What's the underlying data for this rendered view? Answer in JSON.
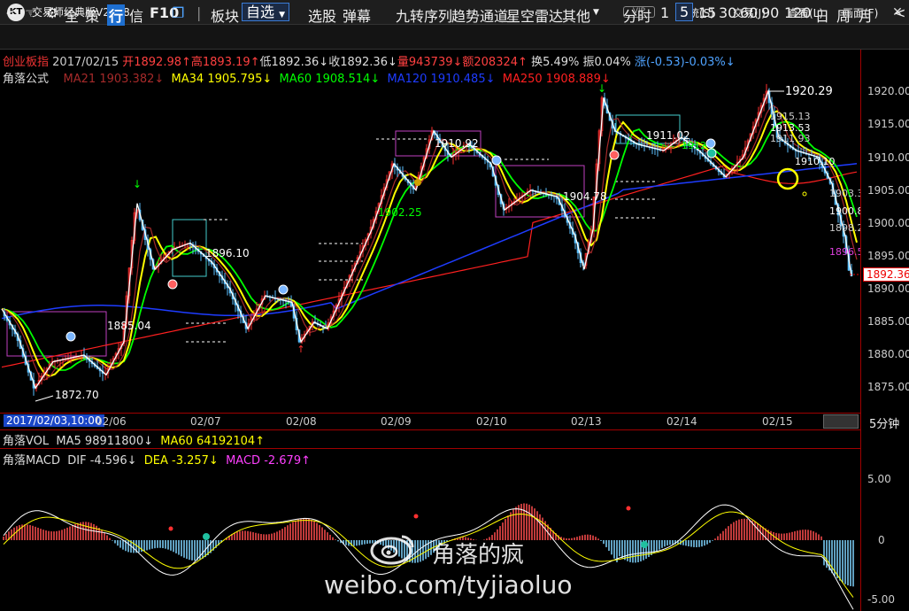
{
  "app": {
    "title": "交易师经典版V2.0.8",
    "logo": "KT",
    "vip": "VIP"
  },
  "menu": [
    "系统(S)",
    "交易(J)",
    "查看(L)",
    "画面(F)"
  ],
  "toolbar": {
    "all": "全",
    "policy": "策",
    "hang": "行",
    "xin": "信",
    "f10": "F10",
    "board": "板块",
    "custom": "自选",
    "xuangu": "选股",
    "tanmu": "弹幕",
    "jiuzhuan": "九转序列",
    "trend": "趋势通道",
    "radar": "星空雷达",
    "other": "其他",
    "fenshi": "分时",
    "p1": "1",
    "p5": "5",
    "p15": "15",
    "p30": "30",
    "p60": "60",
    "p90": "90",
    "p120": "120",
    "day": "日",
    "week": "周",
    "month": "月"
  },
  "info": {
    "name": "创业板指",
    "date": "2017/02/15",
    "open": "开1892.98↑",
    "high": "高1893.19↑",
    "low": "低1892.36↓",
    "close": "收1892.36↓",
    "vol": "量943739↓",
    "amount": "额208324↑",
    "turnover": "换5.49%",
    "amp": "振0.04%",
    "chg": "涨(-0.53)-0.03%↓",
    "formula": "角落公式",
    "ma21": "MA21 1903.382↓",
    "ma34": "MA34 1905.795↓",
    "ma60": "MA60 1908.514↓",
    "ma120": "MA120 1910.485↓",
    "ma250": "MA250 1908.889↓"
  },
  "price_ticks": [
    "1920.00",
    "1915.00",
    "1910.00",
    "1905.00",
    "1900.00",
    "1895.00",
    "1890.00",
    "1885.00",
    "1880.00",
    "1875.00"
  ],
  "current_price": "1892.36",
  "annotations": {
    "a1920": "1920.29",
    "a1885": "1885.04",
    "a1872": "1872.70",
    "a1896": "1896.10",
    "a1902": "1902.25",
    "a1910": "1910.92",
    "a1904": "1904.78",
    "a1911": "1911.02",
    "a1915": "1915.13",
    "a1913": "1913.53",
    "a1911b": "1911.93",
    "a1910b": "1910.10",
    "a1903": "1903.3",
    "a1900": "1900.8",
    "a1898": "1898.2",
    "a1896b": "1896.5",
    "a1912": "1912"
  },
  "dates": {
    "cursor": "2017/02/03,10:00",
    "d1": "02/06",
    "d2": "02/07",
    "d3": "02/08",
    "d4": "02/09",
    "d5": "02/10",
    "d6": "02/13",
    "d7": "02/14",
    "d8": "02/15"
  },
  "period": "5分钟",
  "vol": {
    "label": "角落VOL",
    "ma5": "MA5 98911800↓",
    "ma60": "MA60 64192104↑"
  },
  "macd": {
    "label": "角落MACD",
    "dif": "DIF -4.596↓",
    "dea": "DEA -3.257↓",
    "macd": "MACD -2.679↑",
    "ticks": [
      "5.00",
      "0",
      "-5.00"
    ]
  },
  "watermark": {
    "name": "角落的疯",
    "url": "weibo.com/tyjiaoluo"
  },
  "colors": {
    "ma21": "#a52a2a",
    "ma34": "#ffff00",
    "ma60": "#00ff00",
    "ma120": "#1e3cff",
    "ma250": "#ff2020",
    "up": "#ff3030",
    "down": "#6ac8ff"
  }
}
